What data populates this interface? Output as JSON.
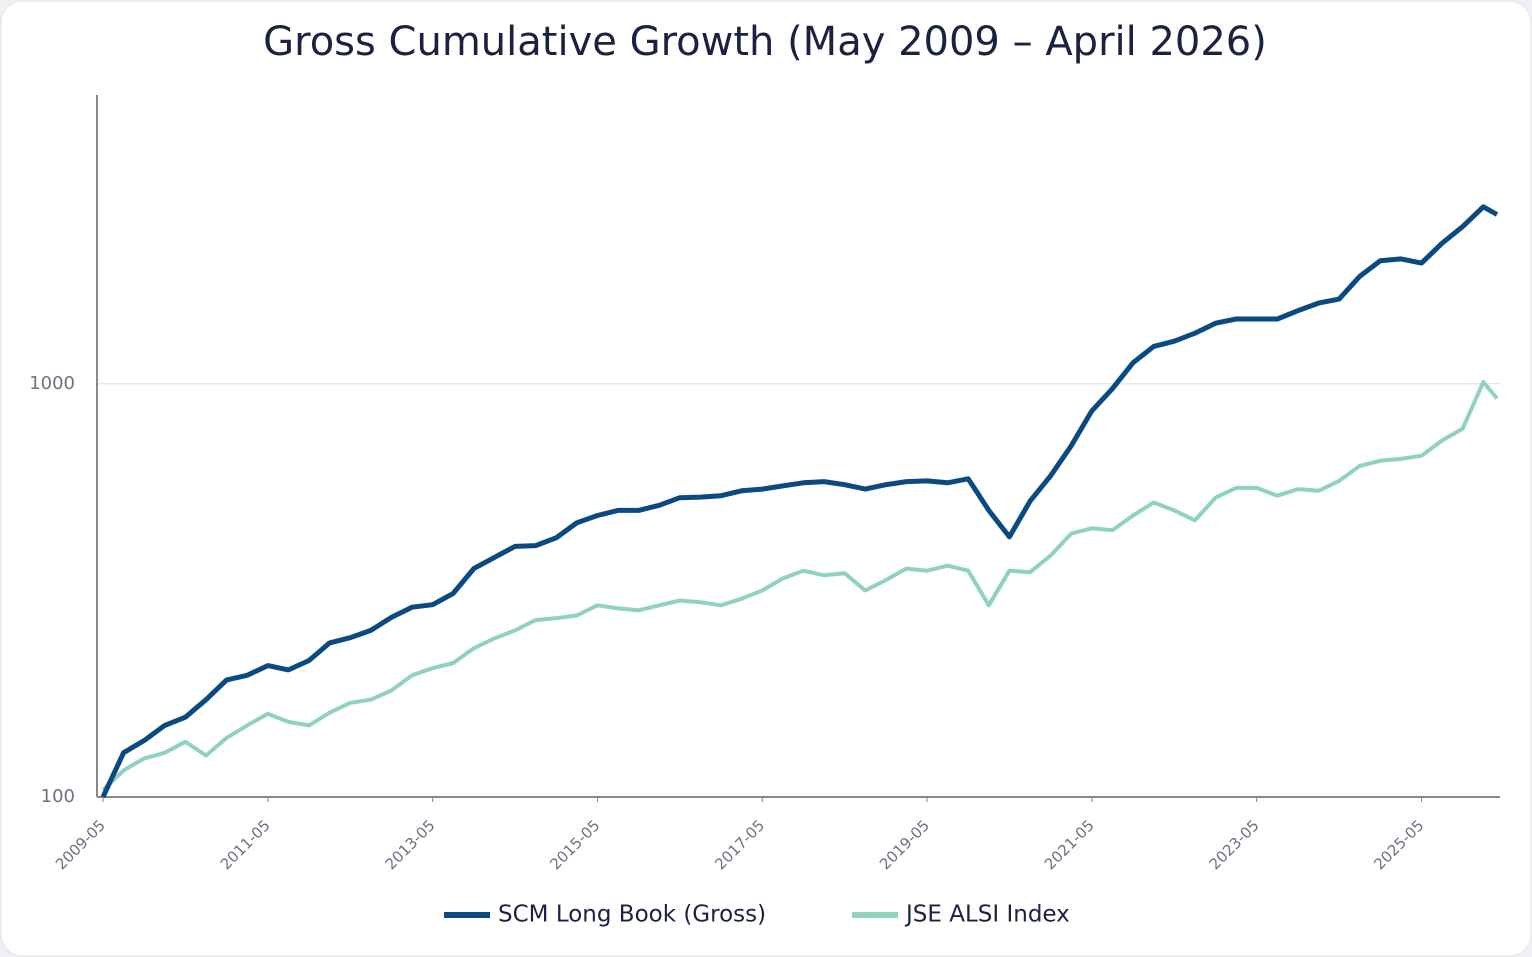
{
  "chart_data": {
    "type": "line",
    "title": "Gross Cumulative Growth (May 2009 – April 2026)",
    "x": [
      "2009-05",
      "2009-08",
      "2009-11",
      "2010-02",
      "2010-05",
      "2010-08",
      "2010-11",
      "2011-02",
      "2011-05",
      "2011-08",
      "2011-11",
      "2012-02",
      "2012-05",
      "2012-08",
      "2012-11",
      "2013-02",
      "2013-05",
      "2013-08",
      "2013-11",
      "2014-02",
      "2014-05",
      "2014-08",
      "2014-11",
      "2015-02",
      "2015-05",
      "2015-08",
      "2015-11",
      "2016-02",
      "2016-05",
      "2016-08",
      "2016-11",
      "2017-02",
      "2017-05",
      "2017-08",
      "2017-11",
      "2018-02",
      "2018-05",
      "2018-08",
      "2018-11",
      "2019-02",
      "2019-05",
      "2019-08",
      "2019-11",
      "2020-02",
      "2020-05",
      "2020-08",
      "2020-11",
      "2021-02",
      "2021-05",
      "2021-08",
      "2021-11",
      "2022-02",
      "2022-05",
      "2022-08",
      "2022-11",
      "2023-02",
      "2023-05",
      "2023-08",
      "2023-11",
      "2024-02",
      "2024-05",
      "2024-08",
      "2024-11",
      "2025-02",
      "2025-05",
      "2025-08",
      "2025-11",
      "2026-02",
      "2026-04"
    ],
    "series": [
      {
        "name": "SCM Long Book (Gross)",
        "color": "#0b4a80",
        "values": [
          100,
          128,
          137,
          149,
          156,
          172,
          192,
          197,
          208,
          203,
          214,
          236,
          243,
          253,
          272,
          288,
          292,
          311,
          357,
          380,
          404,
          406,
          424,
          461,
          480,
          494,
          494,
          508,
          530,
          532,
          536,
          551,
          556,
          566,
          576,
          580,
          570,
          556,
          570,
          580,
          582,
          576,
          589,
          494,
          426,
          520,
          599,
          708,
          860,
          973,
          1124,
          1232,
          1268,
          1326,
          1402,
          1435,
          1435,
          1435,
          1503,
          1568,
          1603,
          1819,
          1985,
          2006,
          1960,
          2189,
          2402,
          2682,
          2569
        ]
      },
      {
        "name": "JSE ALSI Index",
        "color": "#8fd3bd",
        "values": [
          104,
          116,
          124,
          128,
          136,
          126,
          139,
          149,
          159,
          152,
          149,
          160,
          169,
          172,
          181,
          197,
          205,
          211,
          229,
          242,
          253,
          268,
          271,
          275,
          291,
          286,
          283,
          291,
          299,
          296,
          291,
          302,
          316,
          338,
          353,
          344,
          348,
          316,
          335,
          357,
          353,
          363,
          353,
          291,
          353,
          350,
          384,
          434,
          447,
          442,
          480,
          516,
          494,
          467,
          530,
          560,
          560,
          536,
          556,
          551,
          582,
          633,
          651,
          658,
          670,
          729,
          779,
          1010,
          922
        ]
      }
    ],
    "xlim": [
      "2009-05",
      "2026-04"
    ],
    "xticks": [
      "2009-05",
      "2011-05",
      "2013-05",
      "2015-05",
      "2017-05",
      "2019-05",
      "2021-05",
      "2023-05",
      "2025-05"
    ],
    "ylim": [
      100,
      5000
    ],
    "yticks": [
      100,
      1000
    ],
    "log_y": true,
    "grid": true,
    "legend": "bottom"
  }
}
